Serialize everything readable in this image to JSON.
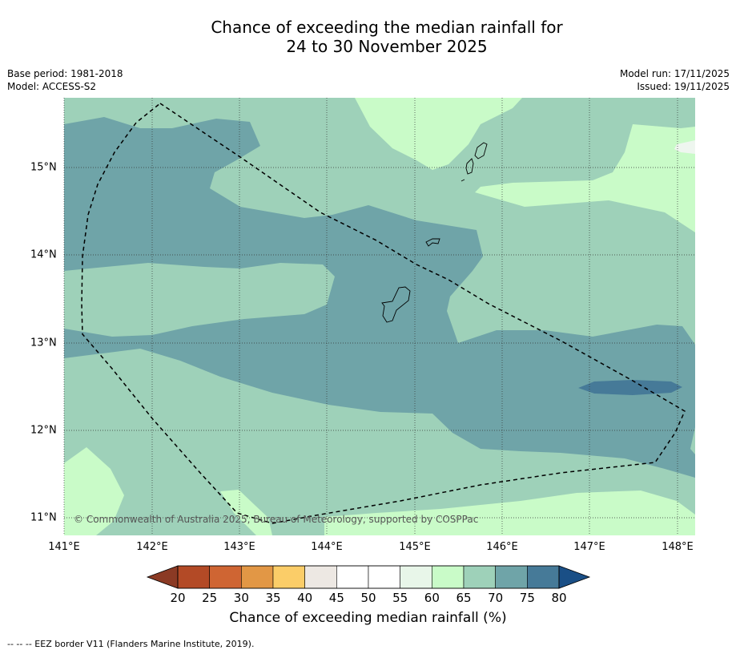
{
  "title": {
    "line1": "Chance of exceeding the median rainfall for",
    "line2": "24 to 30 November 2025"
  },
  "meta_left": {
    "base_period": "Base period: 1981-2018",
    "model": "Model: ACCESS-S2"
  },
  "meta_right": {
    "model_run": "Model run: 17/11/2025",
    "issued": "Issued: 19/11/2025"
  },
  "map": {
    "lon_ticks": [
      "141°E",
      "142°E",
      "143°E",
      "144°E",
      "145°E",
      "146°E",
      "147°E",
      "148°E"
    ],
    "lat_ticks": [
      "15°N",
      "14°N",
      "13°N",
      "12°N",
      "11°N"
    ],
    "copyright": "© Commonwealth of Australia 2025, Bureau of Meteorology, supported by COSPPac",
    "categories": [
      {
        "range": "60-65",
        "color": "#c9fbc8"
      },
      {
        "range": "65-70",
        "color": "#9ed1b9"
      },
      {
        "range": "70-75",
        "color": "#6fa4a8"
      },
      {
        "range": "75-80",
        "color": "#467a98"
      }
    ]
  },
  "colorbar": {
    "title": "Chance of exceeding median rainfall (%)",
    "ticks": [
      "20",
      "25",
      "30",
      "35",
      "40",
      "45",
      "50",
      "55",
      "60",
      "65",
      "70",
      "75",
      "80"
    ],
    "colors": [
      "#8b3a24",
      "#b34a26",
      "#cf6533",
      "#e29745",
      "#fbcd68",
      "#ede8e3",
      "#ffffff",
      "#ffffff",
      "#e8f6e9",
      "#c9fbc8",
      "#9ed1b9",
      "#6fa4a8",
      "#467a98",
      "#1a4f86"
    ]
  },
  "footnote": "--  --  -- EEZ border V11 (Flanders Marine Institute, 2019)."
}
